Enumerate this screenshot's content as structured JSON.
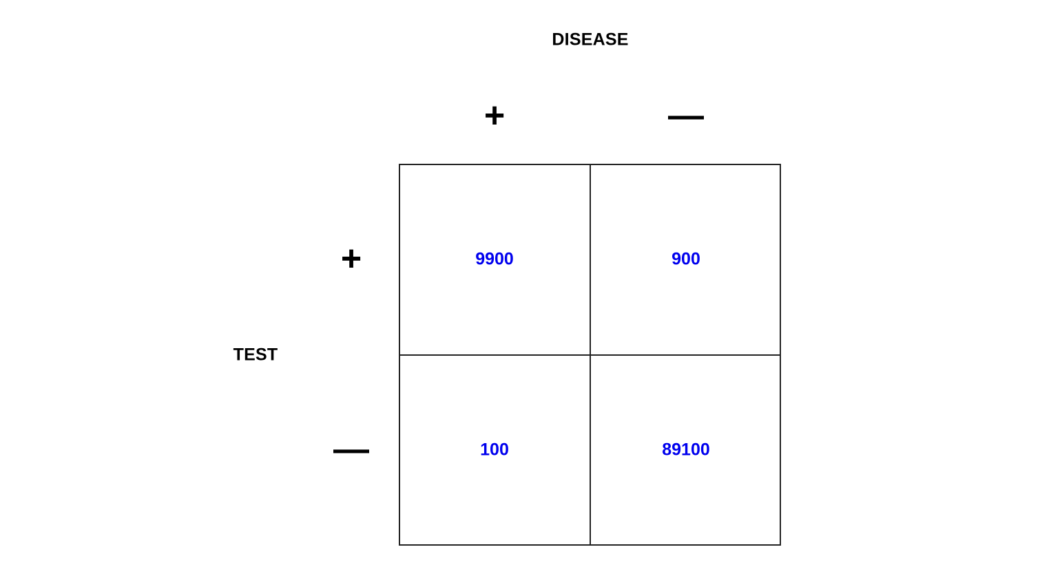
{
  "diagram": {
    "column_header": "DISEASE",
    "row_header": "TEST",
    "column_signs": [
      "+",
      "—"
    ],
    "row_signs": [
      "+",
      "—"
    ],
    "value_color": "#0000ee",
    "cells": {
      "test_pos_disease_pos": "9900",
      "test_pos_disease_neg": "900",
      "test_neg_disease_pos": "100",
      "test_neg_disease_neg": "89100"
    }
  }
}
